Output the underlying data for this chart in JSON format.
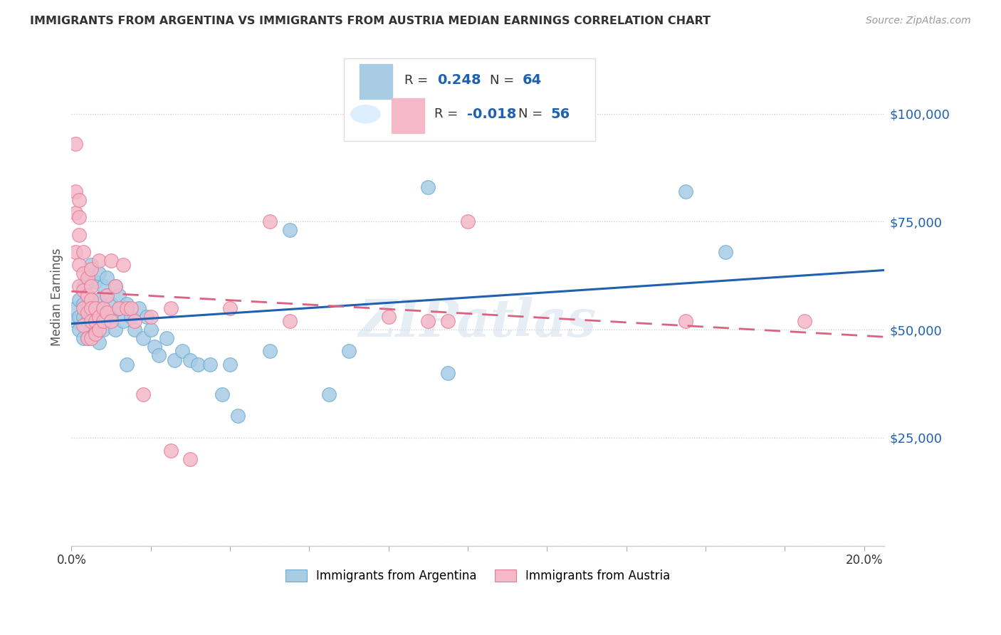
{
  "title": "IMMIGRANTS FROM ARGENTINA VS IMMIGRANTS FROM AUSTRIA MEDIAN EARNINGS CORRELATION CHART",
  "source": "Source: ZipAtlas.com",
  "ylabel": "Median Earnings",
  "xlim": [
    0.0,
    0.205
  ],
  "ylim": [
    0,
    115000
  ],
  "ytick_vals": [
    0,
    25000,
    50000,
    75000,
    100000
  ],
  "ytick_labels": [
    "",
    "$25,000",
    "$50,000",
    "$75,000",
    "$100,000"
  ],
  "xtick_vals": [
    0.0,
    0.02,
    0.04,
    0.06,
    0.08,
    0.1,
    0.12,
    0.14,
    0.16,
    0.18,
    0.2
  ],
  "argentina_color": "#a8cce4",
  "argentina_edge": "#6aaad4",
  "austria_color": "#f4b8c8",
  "austria_edge": "#e87898",
  "argentina_R": 0.248,
  "argentina_N": 64,
  "austria_R": -0.018,
  "austria_N": 56,
  "trendline_arg_color": "#2060b0",
  "trendline_aut_color": "#e06080",
  "watermark": "ZIPatlas",
  "argentina_x": [
    0.001,
    0.001,
    0.002,
    0.002,
    0.002,
    0.003,
    0.003,
    0.003,
    0.003,
    0.004,
    0.004,
    0.004,
    0.004,
    0.004,
    0.005,
    0.005,
    0.005,
    0.005,
    0.006,
    0.006,
    0.006,
    0.007,
    0.007,
    0.007,
    0.007,
    0.008,
    0.008,
    0.008,
    0.009,
    0.009,
    0.01,
    0.01,
    0.011,
    0.011,
    0.012,
    0.012,
    0.013,
    0.014,
    0.014,
    0.015,
    0.016,
    0.017,
    0.018,
    0.019,
    0.02,
    0.021,
    0.022,
    0.024,
    0.026,
    0.028,
    0.03,
    0.032,
    0.035,
    0.038,
    0.04,
    0.042,
    0.05,
    0.055,
    0.065,
    0.07,
    0.09,
    0.095,
    0.155,
    0.165
  ],
  "argentina_y": [
    55000,
    52000,
    57000,
    53000,
    50000,
    56000,
    53000,
    60000,
    48000,
    55000,
    52000,
    58000,
    48000,
    61000,
    65000,
    54000,
    50000,
    57000,
    61000,
    54000,
    50000,
    63000,
    57000,
    53000,
    47000,
    60000,
    55000,
    50000,
    62000,
    58000,
    53000,
    56000,
    60000,
    50000,
    55000,
    58000,
    52000,
    56000,
    42000,
    53000,
    50000,
    55000,
    48000,
    53000,
    50000,
    46000,
    44000,
    48000,
    43000,
    45000,
    43000,
    42000,
    42000,
    35000,
    42000,
    30000,
    45000,
    73000,
    35000,
    45000,
    83000,
    40000,
    82000,
    68000
  ],
  "austria_x": [
    0.001,
    0.001,
    0.001,
    0.001,
    0.002,
    0.002,
    0.002,
    0.002,
    0.002,
    0.003,
    0.003,
    0.003,
    0.003,
    0.003,
    0.004,
    0.004,
    0.004,
    0.004,
    0.005,
    0.005,
    0.005,
    0.005,
    0.005,
    0.005,
    0.006,
    0.006,
    0.006,
    0.007,
    0.007,
    0.007,
    0.008,
    0.008,
    0.009,
    0.009,
    0.01,
    0.01,
    0.011,
    0.012,
    0.013,
    0.014,
    0.015,
    0.016,
    0.018,
    0.02,
    0.025,
    0.025,
    0.03,
    0.04,
    0.05,
    0.055,
    0.08,
    0.09,
    0.095,
    0.1,
    0.155,
    0.185
  ],
  "austria_y": [
    93000,
    82000,
    77000,
    68000,
    80000,
    76000,
    72000,
    65000,
    60000,
    68000,
    63000,
    59000,
    55000,
    51000,
    62000,
    58000,
    54000,
    48000,
    60000,
    57000,
    55000,
    52000,
    48000,
    64000,
    55000,
    52000,
    49000,
    66000,
    53000,
    50000,
    55000,
    52000,
    58000,
    54000,
    66000,
    52000,
    60000,
    55000,
    65000,
    55000,
    55000,
    52000,
    35000,
    53000,
    22000,
    55000,
    20000,
    55000,
    75000,
    52000,
    53000,
    52000,
    52000,
    75000,
    52000,
    52000
  ]
}
